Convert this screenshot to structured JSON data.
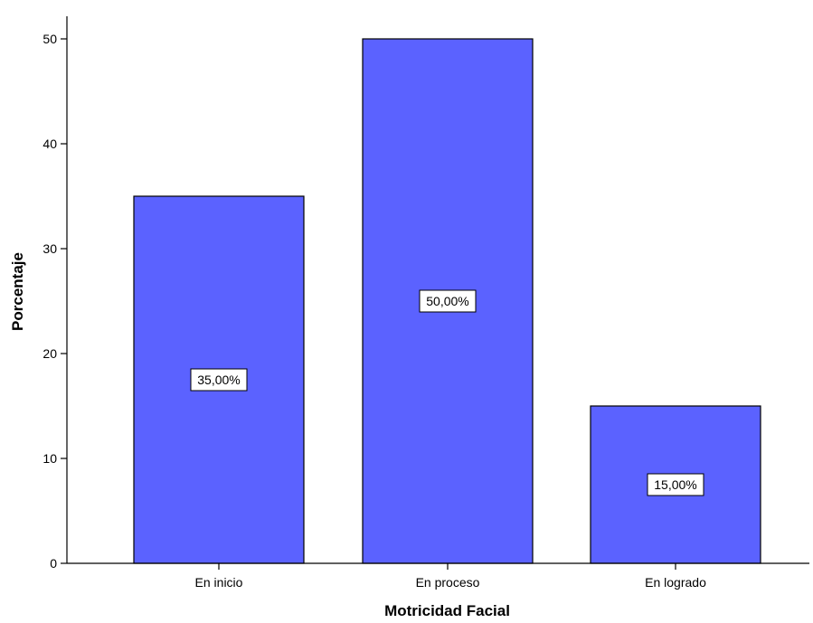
{
  "chart_data": {
    "type": "bar",
    "title": "",
    "xlabel": "Motricidad Facial",
    "ylabel": "Porcentaje",
    "categories": [
      "En inicio",
      "En proceso",
      "En logrado"
    ],
    "values": [
      35,
      50,
      15
    ],
    "data_labels": [
      "35,00%",
      "50,00%",
      "15,00%"
    ],
    "ylim": [
      0,
      50
    ],
    "yticks": [
      0,
      10,
      20,
      30,
      40,
      50
    ],
    "ytick_labels": [
      "0",
      "10",
      "20",
      "30",
      "40",
      "50"
    ],
    "bar_color": "#5b62ff",
    "grid": false,
    "legend": "none"
  }
}
